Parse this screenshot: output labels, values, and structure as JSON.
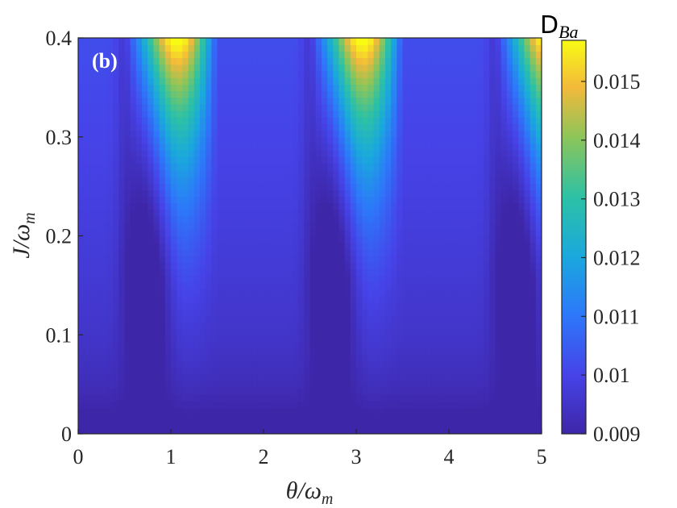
{
  "chart_data": {
    "type": "heatmap",
    "panel_label": "(b)",
    "xlabel": "θ/ω",
    "xlabel_sub": "m",
    "ylabel": "J/ω",
    "ylabel_sub": "m",
    "xlim": [
      0,
      5
    ],
    "ylim": [
      0,
      0.4
    ],
    "x_ticks": [
      0,
      1,
      2,
      3,
      4,
      5
    ],
    "x_tick_labels": [
      "0",
      "1",
      "2",
      "3",
      "4",
      "5"
    ],
    "y_ticks": [
      0,
      0.1,
      0.2,
      0.3,
      0.4
    ],
    "y_tick_labels": [
      "0",
      "0.1",
      "0.2",
      "0.3",
      "0.4"
    ],
    "colorbar": {
      "title": "D",
      "title_sub": "Ba",
      "range": [
        0.009,
        0.0157
      ],
      "ticks": [
        0.009,
        0.01,
        0.011,
        0.012,
        0.013,
        0.014,
        0.015
      ],
      "tick_labels": [
        "0.009",
        "0.01",
        "0.011",
        "0.012",
        "0.013",
        "0.014",
        "0.015"
      ],
      "colormap": "parula"
    },
    "peaks": [
      {
        "theta": 1.0,
        "J": 0.4,
        "value": 0.0157
      },
      {
        "theta": 3.0,
        "J": 0.4,
        "value": 0.0157
      },
      {
        "theta": 5.0,
        "J": 0.4,
        "value": 0.0152
      }
    ],
    "minima_valleys": [
      {
        "theta": 1.7,
        "J": 0.2,
        "value": 0.0093
      },
      {
        "theta": 3.7,
        "J": 0.2,
        "value": 0.0093
      }
    ],
    "baseline": {
      "J": 0,
      "value": 0.009
    }
  }
}
